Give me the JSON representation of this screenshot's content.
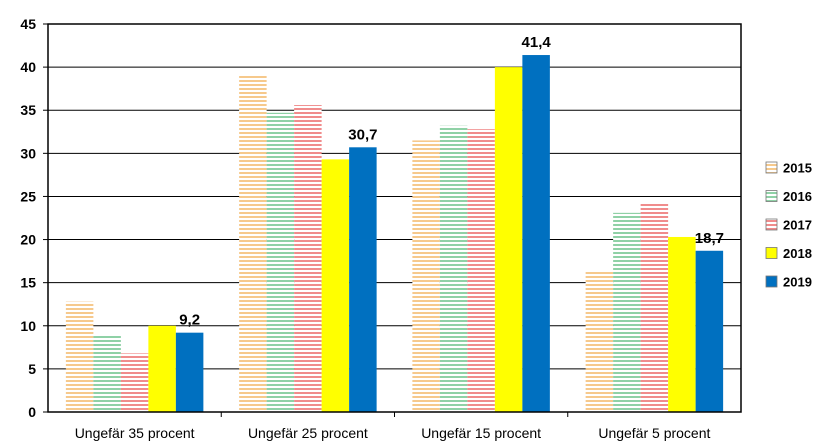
{
  "chart_data": {
    "type": "bar",
    "title": "",
    "xlabel": "",
    "ylabel": "",
    "ylim": [
      0,
      45
    ],
    "yticks": [
      0,
      5,
      10,
      15,
      20,
      25,
      30,
      35,
      40,
      45
    ],
    "grid": true,
    "legend_position": "right",
    "categories": [
      "Ungefär 35 procent",
      "Ungefär 25 procent",
      "Ungefär 15 procent",
      "Ungefär 5 procent"
    ],
    "series": [
      {
        "name": "2015",
        "values": [
          12.8,
          39.0,
          31.5,
          16.3
        ],
        "color": "#f6c98c",
        "pattern": "hlines"
      },
      {
        "name": "2016",
        "values": [
          9.0,
          34.7,
          33.2,
          23.1
        ],
        "color": "#8fd1a6",
        "pattern": "hlines"
      },
      {
        "name": "2017",
        "values": [
          6.8,
          35.6,
          32.8,
          24.2
        ],
        "color": "#f08c8c",
        "pattern": "hlines"
      },
      {
        "name": "2018",
        "values": [
          10.0,
          29.3,
          40.0,
          20.3
        ],
        "color": "#ffff00",
        "pattern": "solid"
      },
      {
        "name": "2019",
        "values": [
          9.2,
          30.7,
          41.4,
          18.7
        ],
        "color": "#0070c0",
        "pattern": "solid"
      }
    ],
    "data_labels": [
      {
        "category_index": 0,
        "series_index": 4,
        "text": "9,2"
      },
      {
        "category_index": 1,
        "series_index": 4,
        "text": "30,7"
      },
      {
        "category_index": 2,
        "series_index": 4,
        "text": "41,4"
      },
      {
        "category_index": 3,
        "series_index": 4,
        "text": "18,7"
      }
    ]
  }
}
